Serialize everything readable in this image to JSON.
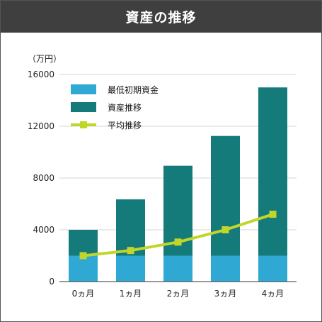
{
  "chart_data": {
    "type": "bar",
    "title": "資産の推移",
    "unit_label": "（万円）",
    "categories": [
      "0ヵ月",
      "1ヵ月",
      "2ヵ月",
      "3ヵ月",
      "4ヵ月"
    ],
    "series": [
      {
        "name": "最低初期資金",
        "kind": "bar-stack",
        "color": "#2fa8d4",
        "values": [
          2000,
          2000,
          2000,
          2000,
          2000
        ]
      },
      {
        "name": "資産推移",
        "kind": "bar-stack",
        "color": "#157a7a",
        "values": [
          2000,
          4350,
          6950,
          9250,
          13000
        ]
      },
      {
        "name": "平均推移",
        "kind": "line",
        "color": "#c2d62a",
        "values": [
          2000,
          2400,
          3050,
          4000,
          5200
        ]
      }
    ],
    "ylim": [
      0,
      16000
    ],
    "yticks": [
      0,
      4000,
      8000,
      12000,
      16000
    ],
    "yticks_labels": [
      "0",
      "4000",
      "8000",
      "12000",
      "16000"
    ],
    "grid": true,
    "legend_position": "top-left"
  }
}
